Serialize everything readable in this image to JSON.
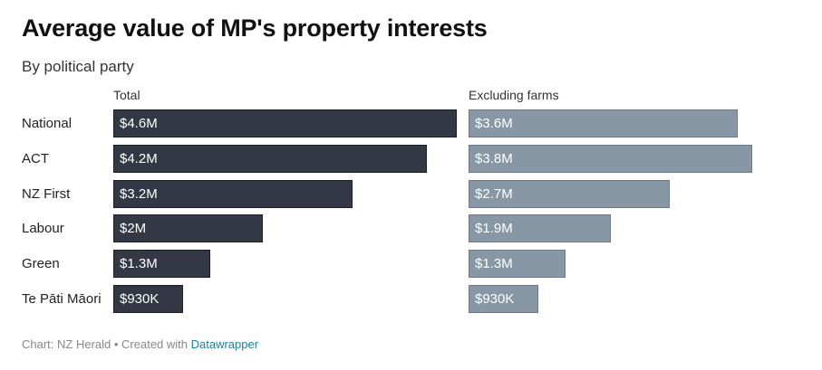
{
  "header": {
    "title": "Average value of MP's property interests",
    "subtitle": "By political party"
  },
  "footer": {
    "source_text": "Chart: NZ Herald • Created with ",
    "link_text": "Datawrapper"
  },
  "colors": {
    "total_bar": "#333844",
    "excluding_farms_bar": "#8797a5"
  },
  "chart_data": {
    "type": "bar",
    "title": "Average value of MP's property interests",
    "subtitle": "By political party",
    "categories": [
      "National",
      "ACT",
      "NZ First",
      "Labour",
      "Green",
      "Te Pāti Māori"
    ],
    "series": [
      {
        "name": "Total",
        "values": [
          4600000,
          4200000,
          3200000,
          2000000,
          1300000,
          930000
        ],
        "labels": [
          "$4.6M",
          "$4.2M",
          "$3.2M",
          "$2M",
          "$1.3M",
          "$930K"
        ]
      },
      {
        "name": "Excluding farms",
        "values": [
          3600000,
          3800000,
          2700000,
          1900000,
          1300000,
          930000
        ],
        "labels": [
          "$3.6M",
          "$3.8M",
          "$2.7M",
          "$1.9M",
          "$1.3M",
          "$930K"
        ]
      }
    ]
  }
}
